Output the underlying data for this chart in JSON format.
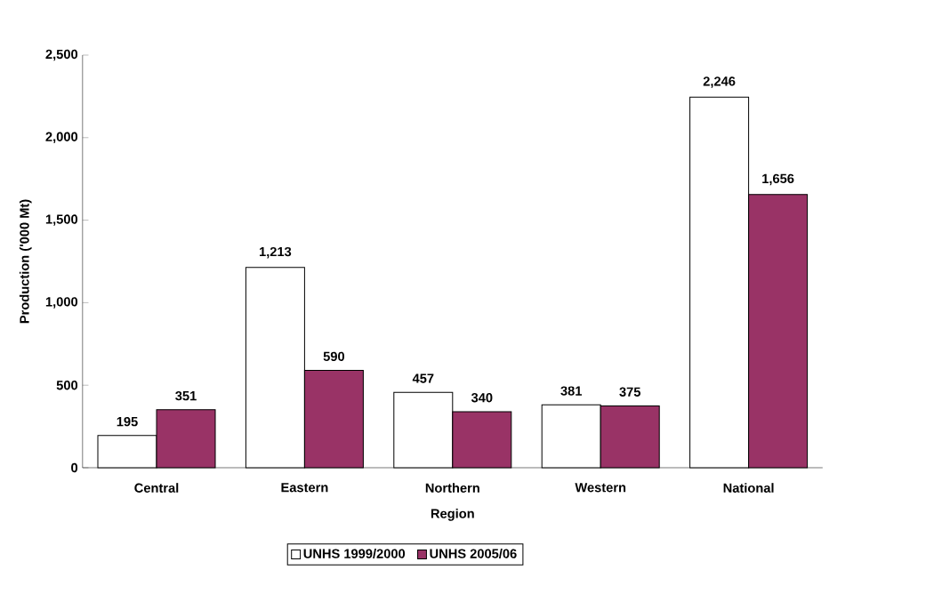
{
  "chart_data": {
    "type": "bar",
    "xlabel": "Region",
    "ylabel": "Production ('000 Mt)",
    "categories": [
      "Central",
      "Eastern",
      "Northern",
      "Western",
      "National"
    ],
    "series": [
      {
        "name": "UNHS 1999/2000",
        "color": "#ffffff",
        "values": [
          195,
          1213,
          457,
          381,
          2246
        ],
        "value_labels": [
          "195",
          "1,213",
          "457",
          "381",
          "2,246"
        ]
      },
      {
        "name": "UNHS 2005/06",
        "color": "#993366",
        "values": [
          351,
          590,
          340,
          375,
          1656
        ],
        "value_labels": [
          "351",
          "590",
          "340",
          "375",
          "1,656"
        ]
      }
    ],
    "ylim": [
      0,
      2500
    ],
    "yticks": [
      {
        "value": 0,
        "label": "0"
      },
      {
        "value": 500,
        "label": "500"
      },
      {
        "value": 1000,
        "label": "1,000"
      },
      {
        "value": 1500,
        "label": "1,500"
      },
      {
        "value": 2000,
        "label": "2,000"
      },
      {
        "value": 2500,
        "label": "2,500"
      }
    ],
    "grid": false,
    "legend": "bottom"
  }
}
